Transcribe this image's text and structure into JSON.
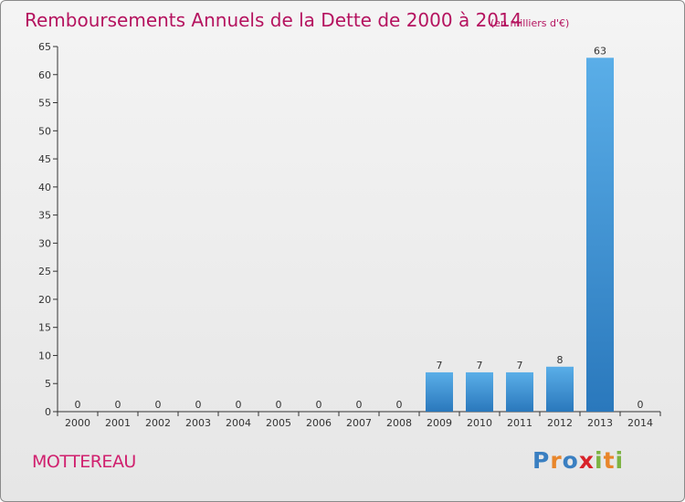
{
  "chart_data": {
    "type": "bar",
    "title": "Remboursements Annuels de la Dette de 2000 à 2014",
    "subtitle": "(en milliers d'€)",
    "categories": [
      "2000",
      "2001",
      "2002",
      "2003",
      "2004",
      "2005",
      "2006",
      "2007",
      "2008",
      "2009",
      "2010",
      "2011",
      "2012",
      "2013",
      "2014"
    ],
    "values": [
      0,
      0,
      0,
      0,
      0,
      0,
      0,
      0,
      0,
      7,
      7,
      7,
      8,
      63,
      0
    ],
    "data_labels": [
      "0",
      "0",
      "0",
      "0",
      "0",
      "0",
      "0",
      "0",
      "0",
      "7",
      "7",
      "7",
      "8",
      "63",
      "0"
    ],
    "ylim": [
      0,
      65
    ],
    "yticks": [
      0,
      5,
      10,
      15,
      20,
      25,
      30,
      35,
      40,
      45,
      50,
      55,
      60,
      65
    ],
    "grid": false,
    "colors": {
      "bar_top": "#5aaee8",
      "bar_bottom": "#2a78bc",
      "title": "#b5135f"
    }
  },
  "footer": {
    "commune": "MOTTEREAU",
    "logo_letters": [
      "P",
      "r",
      "o",
      "x",
      "i",
      "t",
      "i"
    ],
    "logo_colors": [
      "#3a7fc1",
      "#e8862b",
      "#3a7fc1",
      "#d8232a",
      "#7cb342",
      "#e8862b",
      "#7cb342"
    ]
  }
}
